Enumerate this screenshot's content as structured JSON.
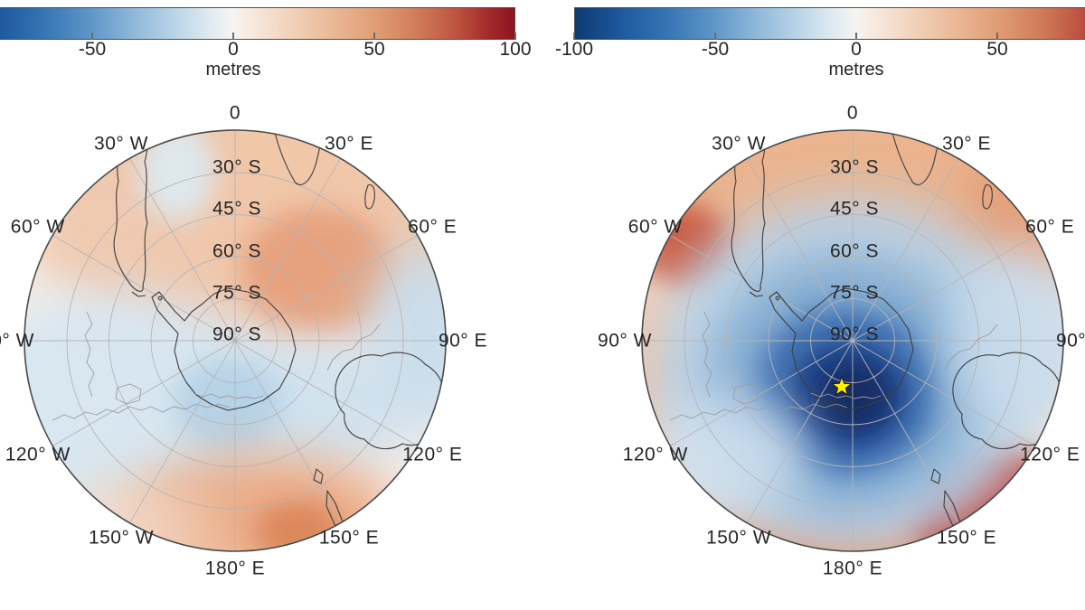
{
  "figure": {
    "background": "#ffffff",
    "units_label": "metres",
    "colormap": {
      "type": "diverging blue-white-red",
      "min_color": "#0d3a70",
      "mid_color": "#f7f4f1",
      "max_color": "#8e1220",
      "range_metres": [
        -100,
        100
      ]
    }
  },
  "colorbars": {
    "left": {
      "unit": "metres",
      "ticks": [
        -50,
        0,
        50,
        100
      ]
    },
    "right": {
      "unit": "metres",
      "ticks": [
        -100,
        -50,
        0,
        50
      ]
    }
  },
  "map_grid": {
    "longitude_ticks": [
      {
        "label": "0",
        "deg": 0
      },
      {
        "label": "30° E",
        "deg": 30
      },
      {
        "label": "60° E",
        "deg": 60
      },
      {
        "label": "90° E",
        "deg": 90
      },
      {
        "label": "120° E",
        "deg": 120
      },
      {
        "label": "150° E",
        "deg": 150
      },
      {
        "label": "180° E",
        "deg": 180
      },
      {
        "label": "150° W",
        "deg": 210
      },
      {
        "label": "120° W",
        "deg": 240
      },
      {
        "label": "90° W",
        "deg": 270
      },
      {
        "label": "60° W",
        "deg": 300
      },
      {
        "label": "30° W",
        "deg": 330
      }
    ],
    "latitude_ticks": [
      {
        "label": "30° S",
        "lat": 30
      },
      {
        "label": "45° S",
        "lat": 45
      },
      {
        "label": "60° S",
        "lat": 60
      },
      {
        "label": "75° S",
        "lat": 75
      },
      {
        "label": "90° S",
        "lat": 90
      }
    ]
  },
  "panels": [
    {
      "name": "left",
      "marker": null
    },
    {
      "name": "right",
      "marker": {
        "symbol": "star",
        "fill_color": "#ffef00",
        "outline_color": "#1a1a1a"
      }
    }
  ],
  "chart_data": [
    {
      "type": "heatmap",
      "panel": "left",
      "projection": "south polar azimuthal, Antarctica centred, outer boundary ~15S, 0 longitude at top",
      "variable": "height anomaly",
      "units": "metres",
      "color_scale": {
        "min": -100,
        "max": 100,
        "ticks_shown": [
          -50,
          0,
          50,
          100
        ],
        "palette": "blue-white-red diverging"
      },
      "grid": {
        "latitude_circles_S": [
          30,
          45,
          60,
          75,
          90
        ],
        "longitude_spokes_every_deg": 30
      },
      "features": [
        {
          "location": "30S-60S sector from 30W to 90E (top of disc)",
          "anomaly_m": 20
        },
        {
          "location": "~60S, 60E-80E",
          "anomaly_m": 40
        },
        {
          "location": "polar cap and 90W-180 mid-latitudes",
          "anomaly_m": -20
        },
        {
          "location": "~55S-65S, 150E-180 (bottom of disc)",
          "anomaly_m": 35
        },
        {
          "location": "~45S near 90E rim",
          "anomaly_m": -15
        }
      ]
    },
    {
      "type": "heatmap",
      "panel": "right",
      "projection": "south polar azimuthal, Antarctica centred, outer boundary ~15S, 0 longitude at top",
      "variable": "height anomaly",
      "units": "metres",
      "color_scale": {
        "min": -100,
        "max": 100,
        "ticks_shown": [
          -100,
          -50,
          0,
          50
        ],
        "palette": "blue-white-red diverging"
      },
      "grid": {
        "latitude_circles_S": [
          30,
          45,
          60,
          75,
          90
        ],
        "longitude_spokes_every_deg": 30
      },
      "features": [
        {
          "location": "deep low centred ~85S between 120E and 180 (polar cap)",
          "anomaly_m": -100
        },
        {
          "location": "~55S, 160E-180 (bottom right rim)",
          "anomaly_m": 90
        },
        {
          "location": "~60S, 60W rim (Drake Passage)",
          "anomaly_m": 55
        },
        {
          "location": "30S-50S northern sectors near rim",
          "anomaly_m": 30
        }
      ],
      "marker": {
        "symbol": "star",
        "fill_color": "#ffef00",
        "outline_color": "#1a1a1a",
        "location": "near South Pole, ~84S 140E"
      }
    }
  ]
}
